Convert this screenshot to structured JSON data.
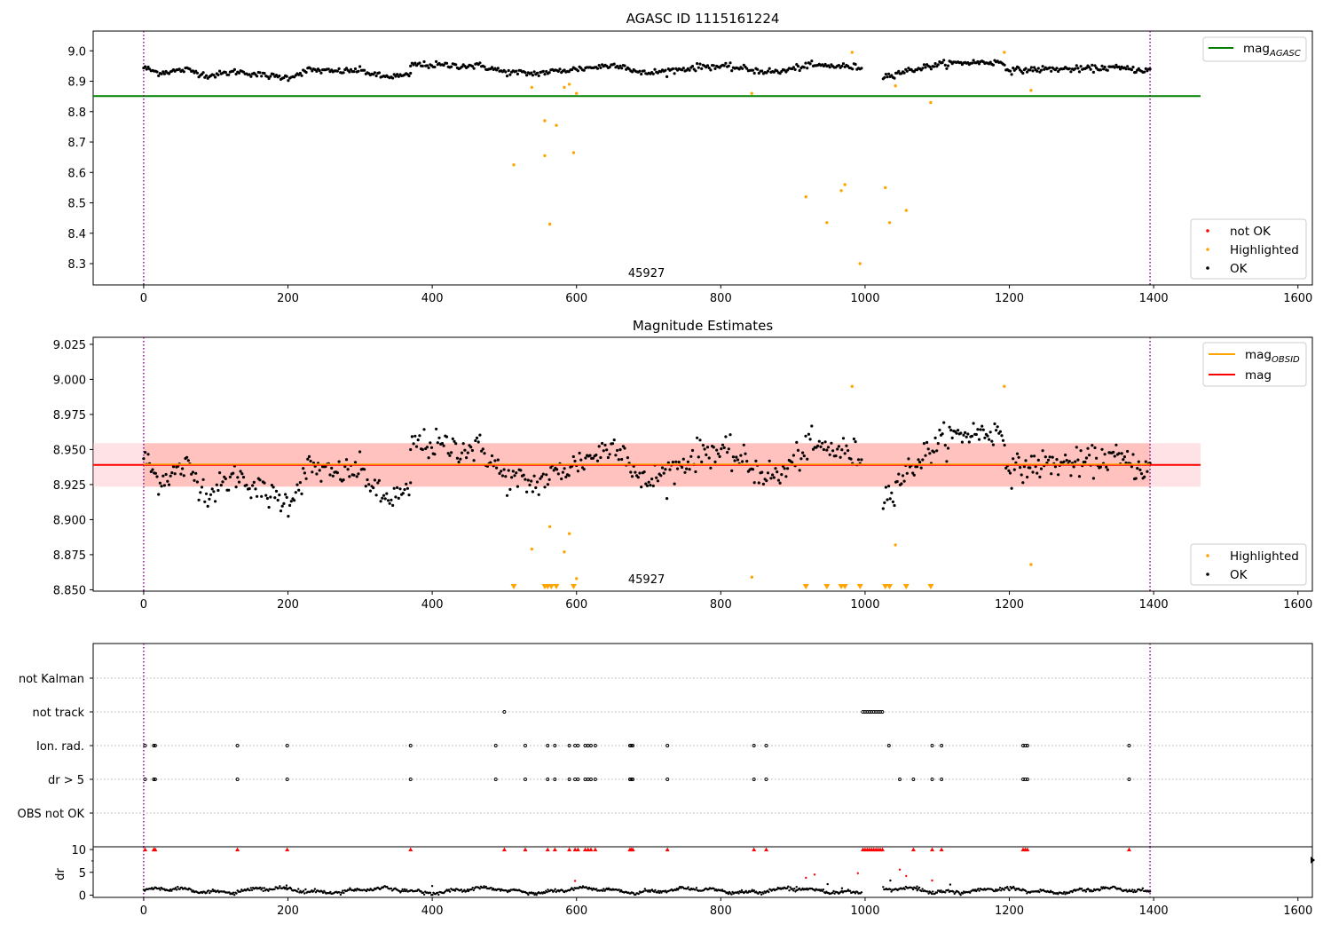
{
  "figure": {
    "title": "AGASC ID 1115161224",
    "colors": {
      "ok": "#000000",
      "highlighted": "#ffa500",
      "not_ok": "#ff0000",
      "mag_agasc": "#008000",
      "mag": "#ff0000",
      "mag_obsid": "#ffa500",
      "band_fill": "#ff6347",
      "band_fill_outer": "#ffb6c1",
      "obsid_line": "#800080",
      "flag_grid": "#b0b0b0"
    }
  },
  "chart_data": [
    {
      "id": "agasc",
      "type": "scatter",
      "title": "AGASC ID 1115161224",
      "xlim": [
        -70,
        1620
      ],
      "ylim": [
        8.23,
        9.065
      ],
      "xticks": [
        0,
        200,
        400,
        600,
        800,
        1000,
        1200,
        1400,
        1600
      ],
      "yticks": [
        8.3,
        8.4,
        8.5,
        8.6,
        8.7,
        8.8,
        8.9,
        9.0
      ],
      "ytick_labels": [
        "8.3",
        "8.4",
        "8.5",
        "8.6",
        "8.7",
        "8.8",
        "8.9",
        "9.0"
      ],
      "grid": false,
      "obsid_label": "45927",
      "obsid_label_x": 697,
      "obsid_bounds": [
        0,
        1395
      ],
      "mag_agasc": 8.851,
      "mag_agasc_xrange": [
        -70,
        1465
      ],
      "legend_upper": {
        "position": "top-right",
        "entries": [
          {
            "label": "mag",
            "subscript": "AGASC",
            "kind": "line",
            "color": "#008000"
          }
        ]
      },
      "legend_lower": {
        "position": "bottom-right",
        "entries": [
          {
            "label": "not OK",
            "kind": "marker",
            "color": "#ff0000"
          },
          {
            "label": "Highlighted",
            "kind": "marker",
            "color": "#ffa500"
          },
          {
            "label": "OK",
            "kind": "marker",
            "color": "#000000"
          }
        ]
      },
      "ok_segments": [
        {
          "x0": 0,
          "x1": 370,
          "knots": [
            [
              0,
              8.945
            ],
            [
              20,
              8.928
            ],
            [
              60,
              8.938
            ],
            [
              90,
              8.918
            ],
            [
              130,
              8.932
            ],
            [
              170,
              8.918
            ],
            [
              200,
              8.912
            ],
            [
              230,
              8.938
            ],
            [
              260,
              8.932
            ],
            [
              300,
              8.936
            ],
            [
              330,
              8.915
            ],
            [
              365,
              8.918
            ]
          ],
          "count": 180,
          "noise": 0.011
        },
        {
          "x0": 370,
          "x1": 995,
          "knots": [
            [
              370,
              8.955
            ],
            [
              420,
              8.952
            ],
            [
              470,
              8.95
            ],
            [
              500,
              8.93
            ],
            [
              540,
              8.925
            ],
            [
              580,
              8.935
            ],
            [
              620,
              8.945
            ],
            [
              660,
              8.955
            ],
            [
              690,
              8.925
            ],
            [
              730,
              8.935
            ],
            [
              780,
              8.95
            ],
            [
              820,
              8.945
            ],
            [
              850,
              8.935
            ],
            [
              880,
              8.93
            ],
            [
              920,
              8.952
            ],
            [
              960,
              8.95
            ],
            [
              995,
              8.945
            ]
          ],
          "count": 300,
          "noise": 0.012
        },
        {
          "x0": 1025,
          "x1": 1395,
          "knots": [
            [
              1025,
              8.915
            ],
            [
              1050,
              8.93
            ],
            [
              1080,
              8.945
            ],
            [
              1110,
              8.958
            ],
            [
              1150,
              8.962
            ],
            [
              1190,
              8.962
            ],
            [
              1200,
              8.935
            ],
            [
              1250,
              8.94
            ],
            [
              1300,
              8.94
            ],
            [
              1340,
              8.945
            ],
            [
              1395,
              8.935
            ]
          ],
          "count": 190,
          "noise": 0.011
        }
      ],
      "highlighted_points": [
        [
          513,
          8.625
        ],
        [
          538,
          8.88
        ],
        [
          556,
          8.77
        ],
        [
          556,
          8.655
        ],
        [
          563,
          8.43
        ],
        [
          572,
          8.755
        ],
        [
          583,
          8.88
        ],
        [
          590,
          8.89
        ],
        [
          596,
          8.665
        ],
        [
          600,
          8.86
        ],
        [
          843,
          8.86
        ],
        [
          918,
          8.52
        ],
        [
          947,
          8.435
        ],
        [
          967,
          8.54
        ],
        [
          972,
          8.56
        ],
        [
          982,
          8.995
        ],
        [
          993,
          8.3
        ],
        [
          1028,
          8.55
        ],
        [
          1034,
          8.435
        ],
        [
          1042,
          8.885
        ],
        [
          1057,
          8.475
        ],
        [
          1091,
          8.83
        ],
        [
          1193,
          8.995
        ],
        [
          1230,
          8.87
        ]
      ],
      "x_zoom_hint": "x axis is sample index"
    },
    {
      "id": "estimates",
      "type": "scatter",
      "title": "Magnitude Estimates",
      "xlim": [
        -70,
        1620
      ],
      "ylim": [
        8.849,
        9.03
      ],
      "xticks": [
        0,
        200,
        400,
        600,
        800,
        1000,
        1200,
        1400,
        1600
      ],
      "yticks": [
        8.85,
        8.875,
        8.9,
        8.925,
        8.95,
        8.975,
        9.0,
        9.025
      ],
      "ytick_labels": [
        "8.850",
        "8.875",
        "8.900",
        "8.925",
        "8.950",
        "8.975",
        "9.000",
        "9.025"
      ],
      "grid": false,
      "obsid_label": "45927",
      "obsid_label_x": 697,
      "obsid_bounds": [
        0,
        1395
      ],
      "mag": 8.939,
      "mag_obsid": 8.9395,
      "mag_err_band": [
        8.9235,
        8.9545
      ],
      "band_xrange": [
        -70,
        1465
      ],
      "band_obsid_xrange": [
        0,
        1395
      ],
      "legend_upper": {
        "position": "top-right",
        "entries": [
          {
            "label": "mag",
            "subscript": "OBSID",
            "kind": "line",
            "color": "#ffa500"
          },
          {
            "label": "mag",
            "kind": "line",
            "color": "#ff0000"
          }
        ]
      },
      "legend_lower": {
        "position": "bottom-right",
        "entries": [
          {
            "label": "Highlighted",
            "kind": "marker",
            "color": "#ffa500"
          },
          {
            "label": "OK",
            "kind": "marker",
            "color": "#000000"
          }
        ]
      },
      "highlighted_points": [
        [
          538,
          8.879
        ],
        [
          583,
          8.877
        ],
        [
          590,
          8.89
        ],
        [
          563,
          8.895
        ],
        [
          600,
          8.858
        ],
        [
          843,
          8.859
        ],
        [
          982,
          8.995
        ],
        [
          1042,
          8.882
        ],
        [
          1193,
          8.995
        ],
        [
          1230,
          8.868
        ]
      ],
      "clipped_markers_x": [
        513,
        556,
        560,
        565,
        572,
        596,
        918,
        947,
        967,
        972,
        993,
        1028,
        1034,
        1057,
        1091
      ]
    },
    {
      "id": "flags",
      "type": "scatter",
      "xlim": [
        -70,
        1620
      ],
      "categories": [
        "not Kalman",
        "not track",
        "Ion. rad.",
        "dr > 5",
        "OBS not OK"
      ],
      "flag_points": {
        "not Kalman": [],
        "not track": [
          500,
          997,
          1000,
          1003,
          1006,
          1009,
          1012,
          1015,
          1018,
          1021,
          1024
        ],
        "Ion. rad.": [
          2,
          14,
          16,
          130,
          199,
          370,
          488,
          529,
          560,
          570,
          590,
          598,
          602,
          612,
          616,
          620,
          626,
          674,
          676,
          678,
          726,
          846,
          863,
          1033,
          1093,
          1106,
          1219,
          1222,
          1225,
          1366
        ],
        "dr > 5": [
          2,
          14,
          16,
          130,
          199,
          370,
          488,
          529,
          560,
          570,
          590,
          598,
          602,
          612,
          616,
          620,
          626,
          674,
          676,
          678,
          726,
          846,
          863,
          1048,
          1067,
          1093,
          1106,
          1219,
          1222,
          1225,
          1366
        ],
        "OBS not OK": []
      }
    },
    {
      "id": "dr",
      "type": "scatter",
      "ylabel": "dr",
      "xlim": [
        -70,
        1620
      ],
      "ylim": [
        -0.5,
        10.6
      ],
      "xticks": [
        0,
        200,
        400,
        600,
        800,
        1000,
        1200,
        1400,
        1600
      ],
      "yticks": [
        0,
        5,
        10
      ],
      "ytick_labels": [
        "0",
        "5",
        "10"
      ],
      "clip_value": 10,
      "clipped_x": [
        2,
        14,
        16,
        130,
        199,
        370,
        500,
        529,
        560,
        570,
        590,
        598,
        602,
        612,
        616,
        620,
        626,
        674,
        676,
        678,
        726,
        846,
        863,
        997,
        1000,
        1003,
        1006,
        1009,
        1012,
        1015,
        1018,
        1021,
        1024,
        1067,
        1093,
        1106,
        1219,
        1222,
        1225,
        1366
      ],
      "red_points": [
        [
          598,
          3.1
        ],
        [
          918,
          3.8
        ],
        [
          930,
          4.5
        ],
        [
          990,
          4.8
        ],
        [
          1048,
          5.6
        ],
        [
          1057,
          4.2
        ],
        [
          1093,
          3.2
        ]
      ],
      "black_extra": [
        [
          198,
          2.1
        ],
        [
          400,
          2.0
        ],
        [
          905,
          1.8
        ],
        [
          948,
          2.4
        ],
        [
          968,
          1.5
        ],
        [
          1035,
          3.2
        ],
        [
          1072,
          1.9
        ],
        [
          1118,
          2.3
        ]
      ],
      "baseline_segments": [
        [
          0,
          995
        ],
        [
          1025,
          1395
        ]
      ],
      "baseline_mean": 1.0,
      "baseline_noise": 0.55
    }
  ]
}
